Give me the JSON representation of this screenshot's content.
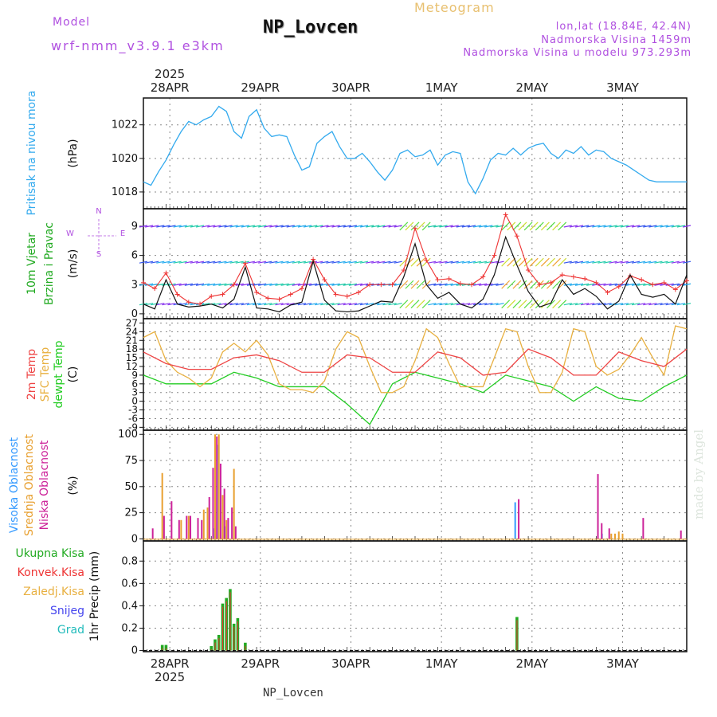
{
  "header": {
    "model_label": "Model",
    "model_name": "wrf-nmm_v3.9.1 e3km",
    "station": "NP_Lovcen",
    "product": "Meteogram",
    "lonlat": "lon,lat (18.84E, 42.4N)",
    "altitude": "Nadmorska Visina 1459m",
    "model_altitude": "Nadmorska Visina u modelu 973.293m"
  },
  "footer": {
    "station": "NP_Lovcen",
    "credit": "made by Angel"
  },
  "colors": {
    "pressure": "#33aaee",
    "temp2m": "#ee4444",
    "sfc": "#e8b040",
    "dewpt": "#22cc22",
    "wind_line": "#111111",
    "wind_marker": "#ee3333",
    "purple": "#b050e0",
    "high_cloud": "#3399ff",
    "mid_cloud": "#e8a030",
    "low_cloud": "#cc2299",
    "total_precip": "#22aa22",
    "conv_precip": "#ee3333",
    "snow": "#4444ee",
    "grad": "#22bbbb"
  },
  "chart_data": {
    "type": "meteogram",
    "year": "2025",
    "days": [
      "28APR",
      "29APR",
      "30APR",
      "1MAY",
      "2MAY",
      "3MAY"
    ],
    "x_start_hours_before_first_day": 7,
    "x_span_hours": 144,
    "panels": [
      {
        "id": "pressure",
        "type": "line",
        "ylabel": "(hPa)",
        "side_label": [
          "Pritisak na nivou mora"
        ],
        "ylim": [
          1017.0,
          1023.6
        ],
        "yticks": [
          1018,
          1020,
          1022
        ],
        "series": [
          {
            "name": "Pritisak na nivou mora",
            "x": [
              0,
              2,
              4,
              6,
              8,
              10,
              12,
              14,
              16,
              18,
              20,
              22,
              24,
              26,
              28,
              30,
              32,
              34,
              36,
              38,
              40,
              42,
              44,
              46,
              48,
              50,
              52,
              54,
              56,
              58,
              60,
              62,
              64,
              66,
              68,
              70,
              72,
              74,
              76,
              78,
              80,
              82,
              84,
              86,
              88,
              90,
              92,
              94,
              96,
              98,
              100,
              102,
              104,
              106,
              108,
              110,
              112,
              114,
              116,
              118,
              120,
              122,
              124,
              126,
              128,
              130,
              132,
              134,
              136,
              138,
              140,
              142,
              144
            ],
            "values": [
              1018.6,
              1018.4,
              1019.2,
              1019.9,
              1020.8,
              1021.6,
              1022.2,
              1022.0,
              1022.3,
              1022.5,
              1023.1,
              1022.8,
              1021.6,
              1021.2,
              1022.5,
              1022.9,
              1021.8,
              1021.3,
              1021.4,
              1021.3,
              1020.2,
              1019.3,
              1019.5,
              1020.9,
              1021.3,
              1021.6,
              1020.7,
              1020.0,
              1020.0,
              1020.3,
              1019.8,
              1019.2,
              1018.7,
              1019.3,
              1020.3,
              1020.5,
              1020.1,
              1020.2,
              1020.5,
              1019.6,
              1020.2,
              1020.4,
              1020.3,
              1018.6,
              1017.9,
              1018.8,
              1019.9,
              1020.3,
              1020.2,
              1020.6,
              1020.2,
              1020.6,
              1020.8,
              1020.9,
              1020.3,
              1020.0,
              1020.5,
              1020.3,
              1020.7,
              1020.2,
              1020.5,
              1020.4,
              1020.0,
              1019.8,
              1019.6,
              1019.3,
              1019.0,
              1018.7,
              1018.6,
              1018.6,
              1018.6,
              1018.6,
              1018.6
            ]
          }
        ]
      },
      {
        "id": "wind",
        "type": "line",
        "ylabel": "(m/s)",
        "side_label": [
          "10m Vjetar",
          "Brzina i Pravac"
        ],
        "compass": {
          "north": "N",
          "east": "E",
          "west": "W",
          "south": "S"
        },
        "ylim": [
          -0.5,
          10.8
        ],
        "yticks": [
          0,
          3,
          6,
          9
        ],
        "series": [
          {
            "name": "Brzina (model)",
            "x": [
              0,
              3,
              6,
              9,
              12,
              15,
              18,
              21,
              24,
              27,
              30,
              33,
              36,
              39,
              42,
              45,
              48,
              51,
              54,
              57,
              60,
              63,
              66,
              69,
              72,
              75,
              78,
              81,
              84,
              87,
              90,
              93,
              96,
              99,
              102,
              105,
              108,
              111,
              114,
              117,
              120,
              123,
              126,
              129,
              132,
              135,
              138,
              141,
              144
            ],
            "values": [
              1.0,
              0.5,
              3.5,
              1.0,
              0.7,
              0.8,
              1.0,
              0.6,
              1.5,
              4.8,
              0.6,
              0.5,
              0.2,
              0.9,
              1.2,
              5.4,
              1.4,
              0.3,
              0.2,
              0.3,
              0.8,
              1.3,
              1.2,
              3.8,
              7.2,
              3.0,
              1.6,
              2.2,
              1.0,
              0.6,
              1.5,
              4.0,
              7.9,
              5.0,
              2.3,
              0.7,
              1.1,
              3.5,
              2.0,
              2.6,
              1.8,
              0.5,
              1.3,
              4.0,
              2.0,
              1.7,
              2.0,
              1.0,
              4.0
            ]
          },
          {
            "name": "Brzina (+)",
            "x": [
              0,
              3,
              6,
              9,
              12,
              15,
              18,
              21,
              24,
              27,
              30,
              33,
              36,
              39,
              42,
              45,
              48,
              51,
              54,
              57,
              60,
              63,
              66,
              69,
              72,
              75,
              78,
              81,
              84,
              87,
              90,
              93,
              96,
              99,
              102,
              105,
              108,
              111,
              114,
              117,
              120,
              123,
              126,
              129,
              132,
              135,
              138,
              141,
              144
            ],
            "values": [
              3.2,
              2.6,
              4.2,
              2.0,
              1.2,
              1.0,
              1.8,
              2.0,
              3.0,
              5.2,
              2.2,
              1.6,
              1.5,
              2.0,
              2.6,
              5.6,
              3.5,
              2.0,
              1.8,
              2.2,
              3.0,
              3.0,
              3.0,
              4.5,
              8.8,
              5.5,
              3.5,
              3.6,
              3.1,
              3.0,
              3.8,
              6.0,
              10.2,
              8.0,
              4.5,
              3.0,
              3.2,
              4.0,
              3.8,
              3.6,
              3.2,
              2.2,
              2.8,
              3.9,
              3.5,
              3.0,
              3.2,
              2.5,
              3.4
            ]
          }
        ],
        "arrow_rows": [
          9,
          5.3,
          3,
          1
        ]
      },
      {
        "id": "temperature",
        "type": "line",
        "ylabel": "(C)",
        "side_label": [
          "2m Temp",
          "SFC Temp",
          "dewpt Temp"
        ],
        "ylim": [
          -10,
          28.5
        ],
        "yticks": [
          -9,
          -6,
          -3,
          0,
          3,
          6,
          9,
          12,
          15,
          18,
          21,
          24,
          27
        ],
        "series": [
          {
            "name": "2m Temp",
            "x": [
              0,
              6,
              12,
              18,
              24,
              30,
              36,
              42,
              48,
              54,
              60,
              66,
              72,
              78,
              84,
              90,
              96,
              102,
              108,
              114,
              120,
              126,
              132,
              138,
              144
            ],
            "values": [
              17,
              13,
              11,
              11,
              15,
              16,
              14,
              10,
              10,
              16,
              15,
              10,
              10,
              17,
              15,
              9,
              10,
              18,
              15,
              9,
              9,
              17,
              14,
              12,
              18
            ]
          },
          {
            "name": "SFC Temp",
            "x": [
              0,
              3,
              6,
              9,
              12,
              15,
              18,
              21,
              24,
              27,
              30,
              33,
              36,
              39,
              42,
              45,
              48,
              51,
              54,
              57,
              60,
              63,
              66,
              69,
              72,
              75,
              78,
              81,
              84,
              87,
              90,
              93,
              96,
              99,
              102,
              105,
              108,
              111,
              114,
              117,
              120,
              123,
              126,
              129,
              132,
              135,
              138,
              141,
              144
            ],
            "values": [
              22,
              24,
              14,
              10,
              8,
              5,
              8,
              17,
              20,
              17,
              21,
              16,
              6,
              4,
              4,
              3,
              7,
              18,
              24,
              22,
              12,
              3,
              3,
              5,
              14,
              25,
              22,
              13,
              5,
              5,
              5,
              15,
              25,
              24,
              12,
              3,
              3,
              10,
              25,
              24,
              12,
              9,
              11,
              16,
              22,
              15,
              9,
              26,
              25
            ]
          },
          {
            "name": "dewpt Temp",
            "x": [
              0,
              6,
              12,
              18,
              24,
              30,
              36,
              42,
              48,
              54,
              60,
              66,
              72,
              78,
              84,
              90,
              96,
              102,
              108,
              114,
              120,
              126,
              132,
              138,
              144
            ],
            "values": [
              9,
              6,
              6,
              6,
              10,
              8,
              5,
              5,
              5,
              -1,
              -8,
              6,
              10,
              8,
              6,
              3,
              9,
              7,
              5,
              0,
              5,
              1,
              0,
              5,
              9
            ]
          }
        ]
      },
      {
        "id": "cloud",
        "type": "bar",
        "ylabel": "(%)",
        "side_label": [
          "Visoka Oblacnost",
          "Srednja Oblacnost",
          "Niska Oblacnost"
        ],
        "ylim": [
          -2,
          104
        ],
        "yticks": [
          0,
          25,
          50,
          75,
          100
        ],
        "series": [
          {
            "name": "Visoka Oblacnost",
            "x": [
              19,
              20,
              22,
              99,
              122
            ],
            "values": [
              10,
              90,
              12,
              35,
              5
            ]
          },
          {
            "name": "Srednja Oblacnost",
            "x": [
              5,
              10,
              12,
              16,
              17,
              19,
              20,
              21,
              22,
              24,
              124,
              125,
              126,
              127
            ],
            "values": [
              63,
              18,
              22,
              28,
              30,
              100,
              100,
              42,
              18,
              67,
              5,
              5,
              7,
              5
            ]
          },
          {
            "name": "Niska Oblacnost",
            "x": [
              2,
              5,
              7,
              9,
              11,
              12,
              14,
              15,
              17,
              18,
              19,
              20,
              21,
              22,
              23,
              24,
              99,
              120,
              121,
              123,
              132,
              142
            ],
            "values": [
              10,
              22,
              36,
              18,
              22,
              22,
              20,
              18,
              40,
              68,
              98,
              72,
              48,
              20,
              30,
              12,
              38,
              62,
              15,
              10,
              20,
              8
            ]
          }
        ]
      },
      {
        "id": "precip",
        "type": "bar",
        "ylabel": "1hr Precip (mm)",
        "legend": [
          "Ukupna Kisa",
          "Konvek.Kisa",
          "Zaledj.Kisa",
          "Snijeg",
          "Grad"
        ],
        "ylim": [
          -0.01,
          0.98
        ],
        "yticks": [
          0,
          0.2,
          0.4,
          0.6,
          0.8
        ],
        "series": [
          {
            "name": "Ukupna Kisa",
            "x": [
              5,
              6,
              18,
              19,
              20,
              21,
              22,
              23,
              24,
              25,
              27,
              99
            ],
            "values": [
              0.05,
              0.05,
              0.04,
              0.1,
              0.14,
              0.42,
              0.47,
              0.55,
              0.24,
              0.29,
              0.07,
              0.3
            ]
          }
        ]
      }
    ]
  }
}
